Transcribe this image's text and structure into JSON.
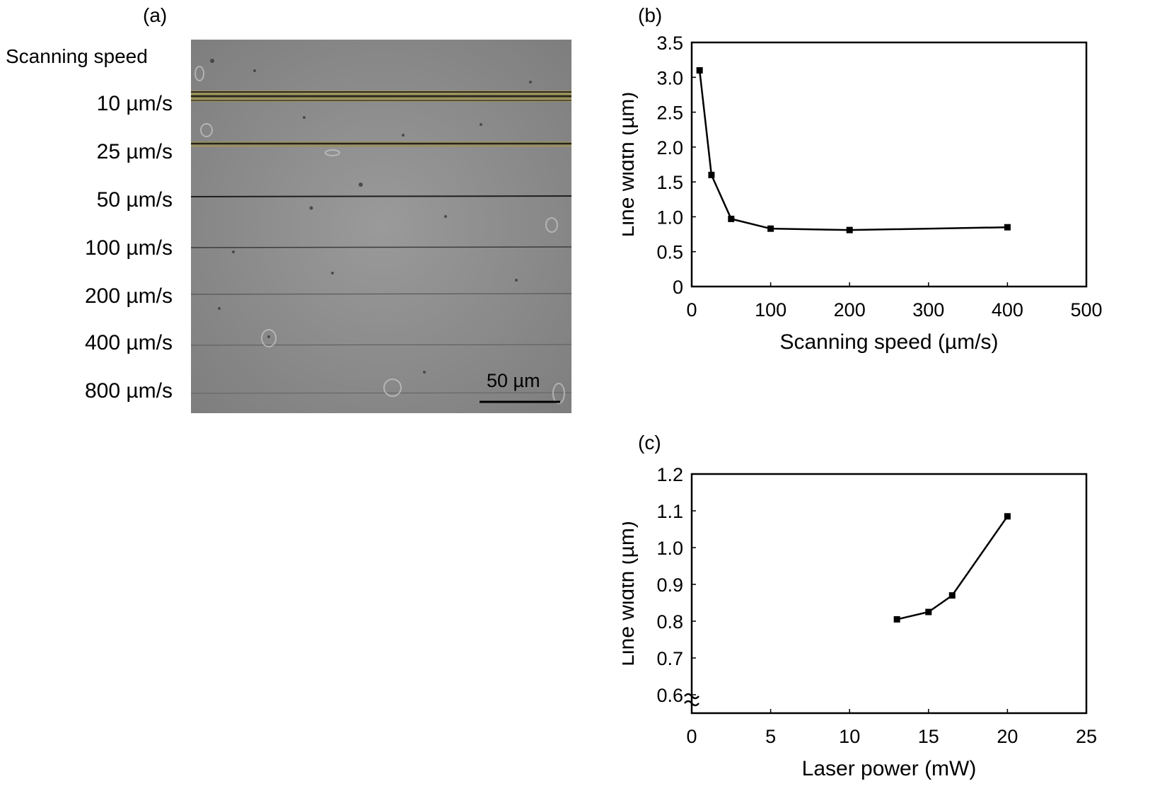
{
  "panel_a": {
    "label": "(a)",
    "heading": "Scanning speed",
    "speed_labels": [
      "10 µm/s",
      "25 µm/s",
      "50 µm/s",
      "100 µm/s",
      "200 µm/s",
      "400 µm/s",
      "800 µm/s"
    ],
    "scale_bar_label": "50 µm"
  },
  "panel_b": {
    "label": "(b)"
  },
  "panel_c": {
    "label": "(c)"
  },
  "chart_data": [
    {
      "type": "line",
      "x": [
        10,
        25,
        50,
        100,
        200,
        400
      ],
      "series": [
        {
          "values": [
            3.1,
            1.6,
            0.97,
            0.83,
            0.81,
            0.85
          ]
        }
      ],
      "xlabel": "Scanning speed (µm/s)",
      "ylabel": "Line width (µm)",
      "xlim": [
        0,
        500
      ],
      "ylim": [
        0,
        3.5
      ],
      "xticks": [
        0,
        100,
        200,
        300,
        400,
        500
      ],
      "yticks": [
        0,
        0.5,
        1.0,
        1.5,
        2.0,
        2.5,
        3.0,
        3.5
      ],
      "yticklabels": [
        "0",
        "0.5",
        "1.0",
        "1.5",
        "2.0",
        "2.5",
        "3.0",
        "3.5"
      ],
      "grid": false,
      "color": "#000000"
    },
    {
      "type": "line",
      "x": [
        13,
        15,
        16.5,
        20
      ],
      "series": [
        {
          "values": [
            0.805,
            0.825,
            0.87,
            1.085
          ]
        }
      ],
      "xlabel": "Laser power (mW)",
      "ylabel": "Line width (µm)",
      "xlim": [
        0,
        25
      ],
      "ylim": [
        0.55,
        1.2
      ],
      "axis_break": true,
      "xticks": [
        0,
        5,
        10,
        15,
        20,
        25
      ],
      "yticks": [
        0.6,
        0.7,
        0.8,
        0.9,
        1.0,
        1.1,
        1.2
      ],
      "yticklabels": [
        "0.6",
        "0.7",
        "0.8",
        "0.9",
        "1.0",
        "1.1",
        "1.2"
      ],
      "grid": false,
      "color": "#000000"
    }
  ]
}
